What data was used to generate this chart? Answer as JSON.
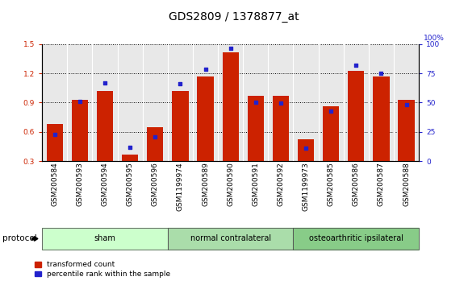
{
  "title": "GDS2809 / 1378877_at",
  "samples": [
    "GSM200584",
    "GSM200593",
    "GSM200594",
    "GSM200595",
    "GSM200596",
    "GSM1199974",
    "GSM200589",
    "GSM200590",
    "GSM200591",
    "GSM200592",
    "GSM1199973",
    "GSM200585",
    "GSM200586",
    "GSM200587",
    "GSM200588"
  ],
  "red_values": [
    0.68,
    0.93,
    1.02,
    0.37,
    0.65,
    1.02,
    1.17,
    1.42,
    0.97,
    0.97,
    0.52,
    0.86,
    1.23,
    1.17,
    0.93
  ],
  "blue_values": [
    0.575,
    0.91,
    1.1,
    0.44,
    0.545,
    1.09,
    1.245,
    1.455,
    0.9,
    0.895,
    0.435,
    0.815,
    1.285,
    1.205,
    0.88
  ],
  "groups": [
    {
      "label": "sham",
      "start": 0,
      "end": 5
    },
    {
      "label": "normal contralateral",
      "start": 5,
      "end": 10
    },
    {
      "label": "osteoarthritic ipsilateral",
      "start": 10,
      "end": 15
    }
  ],
  "group_colors": [
    "#ccffcc",
    "#aaddaa",
    "#88cc88"
  ],
  "ylim_left": [
    0.3,
    1.5
  ],
  "ylim_right": [
    0,
    100
  ],
  "yticks_left": [
    0.3,
    0.6,
    0.9,
    1.2,
    1.5
  ],
  "yticks_right": [
    0,
    25,
    50,
    75,
    100
  ],
  "bar_color": "#cc2200",
  "dot_color": "#2222cc",
  "plot_bg": "#e8e8e8",
  "title_fontsize": 10,
  "tick_fontsize": 6.5,
  "bar_width": 0.65,
  "protocol_label": "protocol",
  "legend_red": "transformed count",
  "legend_blue": "percentile rank within the sample"
}
